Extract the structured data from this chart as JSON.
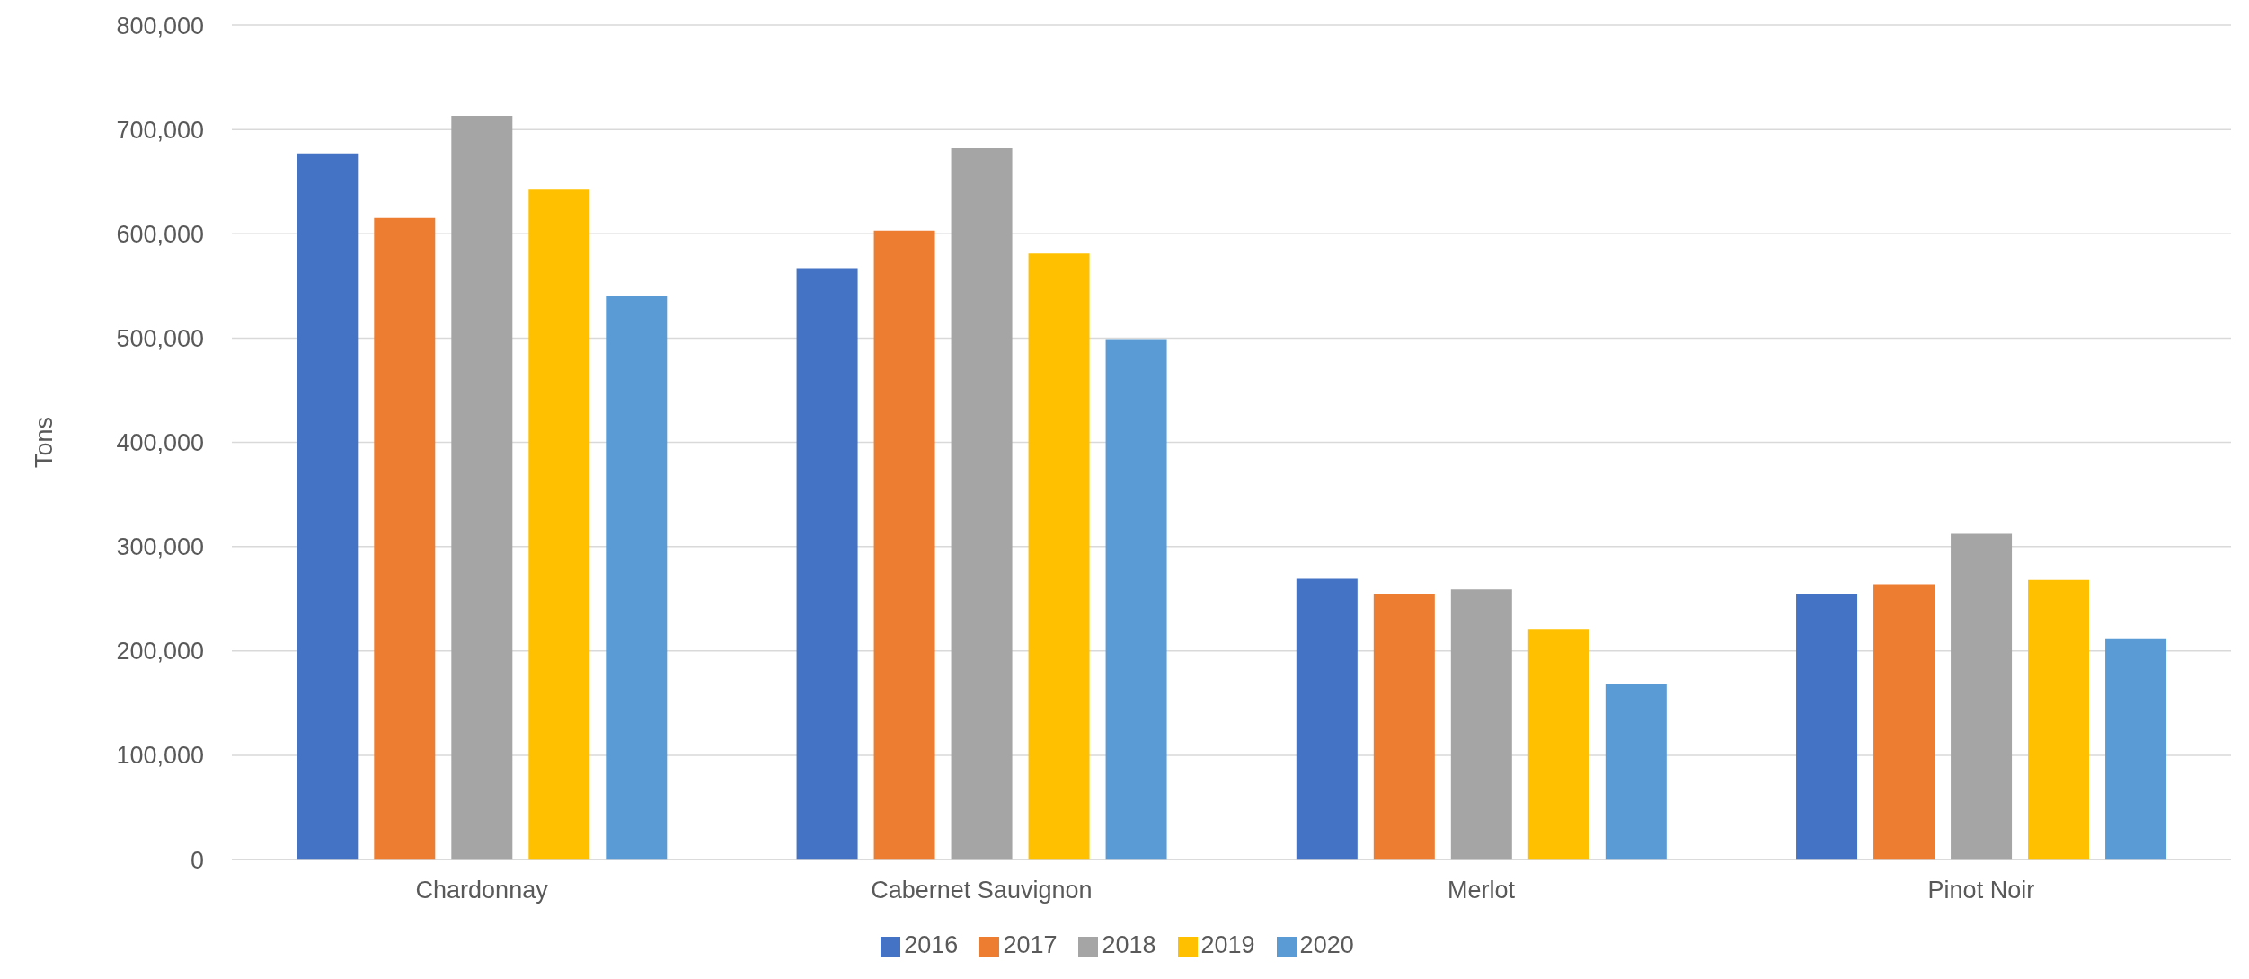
{
  "chart_data": {
    "type": "bar",
    "ylabel": "Tons",
    "categories": [
      "Chardonnay",
      "Cabernet Sauvignon",
      "Merlot",
      "Pinot Noir"
    ],
    "series": [
      {
        "name": "2016",
        "color": "#4472c4",
        "values": [
          677000,
          567000,
          269000,
          255000
        ]
      },
      {
        "name": "2017",
        "color": "#ed7d31",
        "values": [
          615000,
          603000,
          255000,
          264000
        ]
      },
      {
        "name": "2018",
        "color": "#a5a5a5",
        "values": [
          713000,
          682000,
          259000,
          313000
        ]
      },
      {
        "name": "2019",
        "color": "#ffc000",
        "values": [
          643000,
          581000,
          221000,
          268000
        ]
      },
      {
        "name": "2020",
        "color": "#5b9bd5",
        "values": [
          540000,
          499000,
          168000,
          212000
        ]
      }
    ],
    "ylim": [
      0,
      800000
    ],
    "yticks": [
      0,
      {
        "value": 100000,
        "label": "100,000"
      },
      {
        "value": 200000,
        "label": "200,000"
      },
      {
        "value": 300000,
        "label": "300,000"
      },
      {
        "value": 400000,
        "label": "400,000"
      },
      {
        "value": 500000,
        "label": "500,000"
      },
      {
        "value": 600000,
        "label": "600,000"
      },
      {
        "value": 700000,
        "label": "700,000"
      },
      {
        "value": 800000,
        "label": "800,000"
      }
    ],
    "grid": "y",
    "legend": "bottom"
  }
}
